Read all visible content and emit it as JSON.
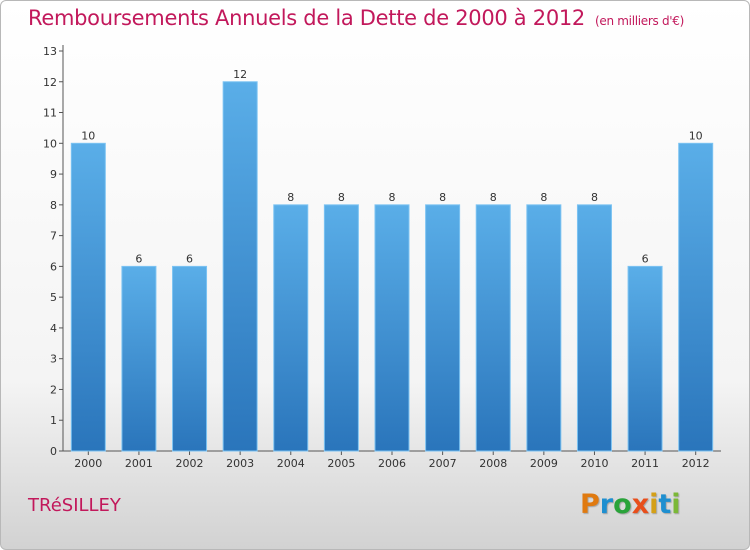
{
  "chart_data": {
    "type": "bar",
    "title": "Remboursements Annuels de la Dette de 2000 à 2012",
    "subtitle": "(en milliers d'€)",
    "categories": [
      "2000",
      "2001",
      "2002",
      "2003",
      "2004",
      "2005",
      "2006",
      "2007",
      "2008",
      "2009",
      "2010",
      "2011",
      "2012"
    ],
    "values": [
      10,
      6,
      6,
      12,
      8,
      8,
      8,
      8,
      8,
      8,
      8,
      6,
      10
    ],
    "ylim": [
      0,
      13
    ],
    "yticks": [
      0,
      1,
      2,
      3,
      4,
      5,
      6,
      7,
      8,
      9,
      10,
      11,
      12,
      13
    ],
    "grid": false,
    "bar_color": "#3d8fd6",
    "bar_color_light": "#5aaee8",
    "bar_color_dark": "#2a75bb"
  },
  "footer": {
    "commune": "TRéSILLEY",
    "brand": "Proxiti",
    "brand_colors": [
      "#e07a10",
      "#1e8fd0",
      "#2aa33a",
      "#e84e1b",
      "#d4a017",
      "#1e8fd0",
      "#7bb837"
    ]
  }
}
